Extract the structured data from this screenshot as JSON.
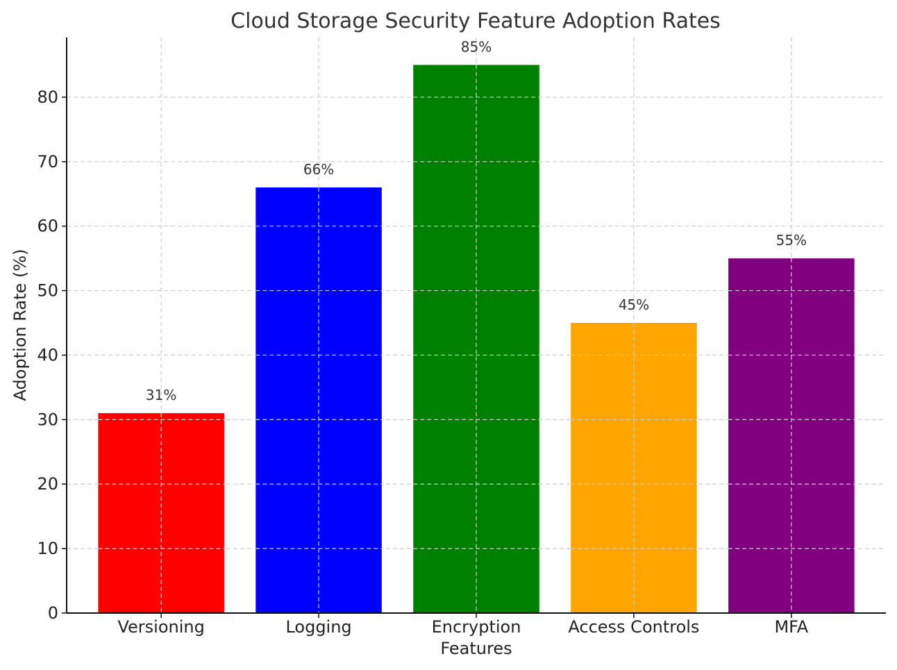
{
  "chart_data": {
    "type": "bar",
    "title": "Cloud Storage Security Feature Adoption Rates",
    "xlabel": "",
    "ylabel": "Adoption Rate (%)",
    "categories": [
      "Versioning",
      "Logging",
      "Encryption Features",
      "Access Controls",
      "MFA"
    ],
    "category_lines": [
      [
        "Versioning"
      ],
      [
        "Logging"
      ],
      [
        "Encryption",
        "Features"
      ],
      [
        "Access Controls"
      ],
      [
        "MFA"
      ]
    ],
    "values": [
      31,
      66,
      85,
      45,
      55
    ],
    "data_labels": [
      "31%",
      "66%",
      "85%",
      "45%",
      "55%"
    ],
    "colors": [
      "#ff0000",
      "#0000ff",
      "#008000",
      "#ffa500",
      "#800080"
    ],
    "ylim": [
      0,
      89.25
    ],
    "yticks": [
      0,
      10,
      20,
      30,
      40,
      50,
      60,
      70,
      80
    ],
    "grid": true,
    "legend": "none"
  }
}
